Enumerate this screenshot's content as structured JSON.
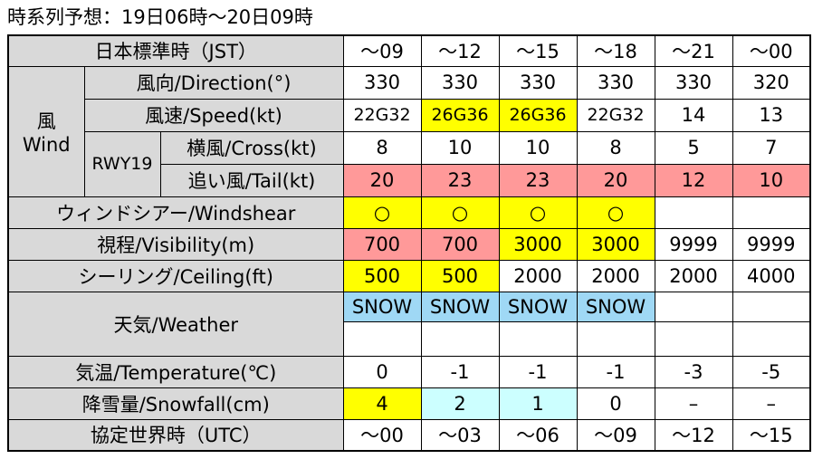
{
  "title": "時系列予想：19日06時〜20日09時",
  "jst": {
    "label": "日本標準時（JST）",
    "values": [
      "〜09",
      "〜12",
      "〜15",
      "〜18",
      "〜21",
      "〜00"
    ]
  },
  "wind": {
    "label": "風",
    "label_en": "Wind",
    "runway": "RWY19",
    "rows": [
      {
        "label": "風向/Direction(°)",
        "values": [
          330,
          330,
          330,
          330,
          330,
          320
        ]
      },
      {
        "label": "風速/Speed(kt)",
        "values": [
          "22G32",
          "26G36",
          "26G36",
          "22G32",
          14,
          13
        ],
        "fills": [
          null,
          "#ffff00",
          "#ffff00",
          null,
          null,
          null
        ]
      },
      {
        "label": "横風/Cross(kt)",
        "values": [
          8,
          10,
          10,
          8,
          5,
          7
        ]
      },
      {
        "label": "追い風/Tail(kt)",
        "values": [
          20,
          23,
          23,
          20,
          12,
          10
        ],
        "fills": [
          "#ff9999",
          "#ff9999",
          "#ff9999",
          "#ff9999",
          "#ff9999",
          "#ff9999"
        ]
      }
    ]
  },
  "rows": [
    {
      "label": "ウィンドシアー/Windshear",
      "values": [
        "○",
        "○",
        "○",
        "○",
        null,
        null
      ],
      "fills": [
        "#ffff00",
        "#ffff00",
        "#ffff00",
        "#ffff00",
        null,
        null
      ]
    },
    {
      "label": "視程/Visibility(m)",
      "values": [
        700,
        700,
        3000,
        3000,
        9999,
        9999
      ],
      "fills": [
        "#ff9999",
        "#ff9999",
        "#ffff00",
        "#ffff00",
        null,
        null
      ]
    },
    {
      "label": "シーリング/Ceiling(ft)",
      "values": [
        500,
        500,
        2000,
        2000,
        2000,
        4000
      ],
      "fills": [
        "#ffff00",
        "#ffff00",
        null,
        null,
        null,
        null
      ]
    },
    {
      "label": "天気/Weather",
      "values": [
        "SNOW",
        "SNOW",
        "SNOW",
        "SNOW",
        null,
        null
      ],
      "fills": [
        "#9fd8f5",
        "#9fd8f5",
        "#9fd8f5",
        "#9fd8f5",
        null,
        null
      ],
      "double": true
    },
    {
      "label": "気温/Temperature(℃)",
      "values": [
        0,
        -1,
        -1,
        -1,
        -3,
        -5
      ]
    },
    {
      "label": "降雪量/Snowfall(cm)",
      "values": [
        4,
        2,
        1,
        0,
        "–",
        "–"
      ],
      "fills": [
        "#ffff00",
        "#ccffff",
        "#ccffff",
        null,
        null,
        null
      ]
    }
  ],
  "utc": {
    "label": "協定世界時（UTC）",
    "values": [
      "〜00",
      "〜03",
      "〜06",
      "〜09",
      "〜12",
      "〜15"
    ]
  }
}
